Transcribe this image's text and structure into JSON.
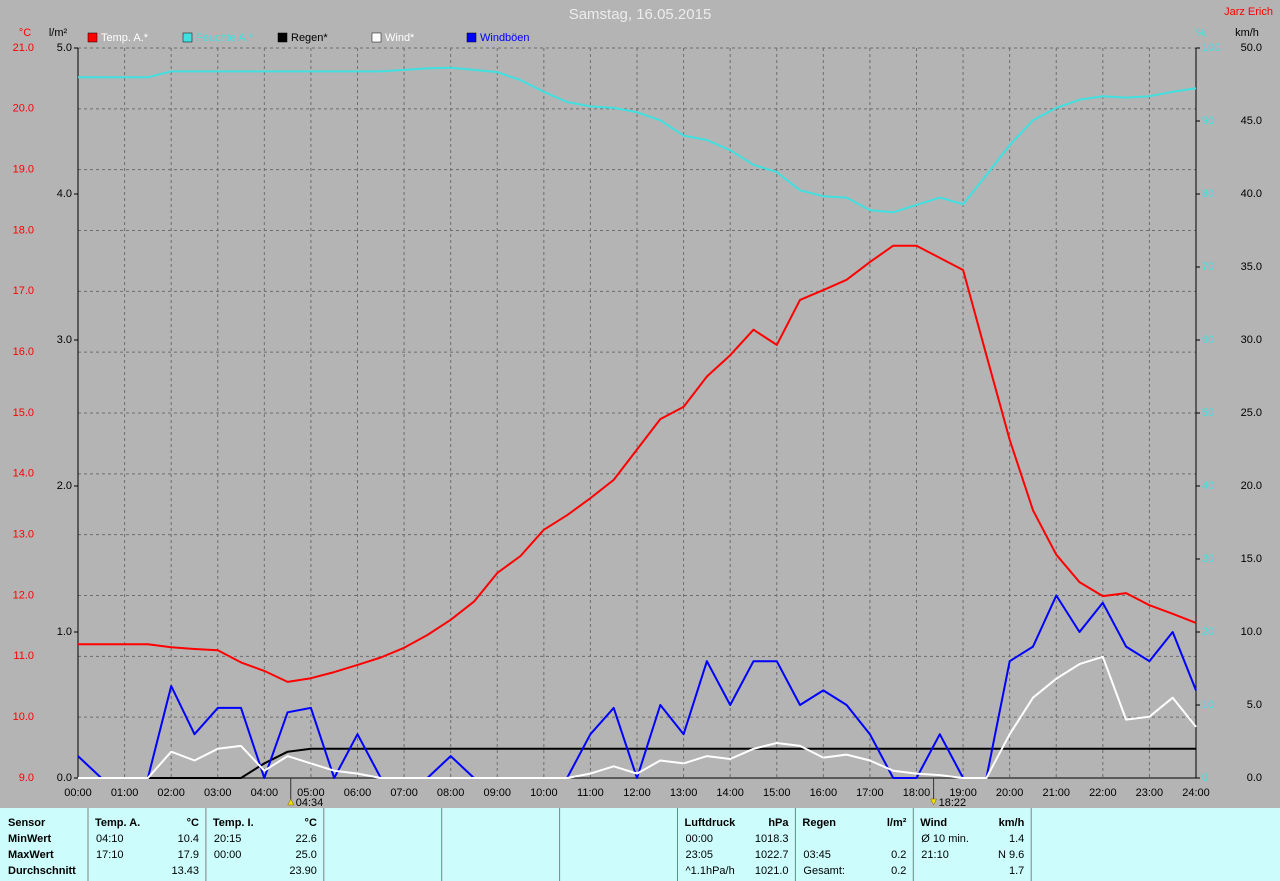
{
  "chart_data": {
    "type": "line",
    "title": "Samstag, 16.05.2015",
    "author": "Jarz Erich",
    "ylabel": "°C",
    "y2label": "l/m²",
    "y3label": "%",
    "y4label": "km/h",
    "x": [
      0,
      0.5,
      1,
      1.5,
      2,
      2.5,
      3,
      3.5,
      4,
      4.5,
      5,
      5.5,
      6,
      6.5,
      7,
      7.5,
      8,
      8.5,
      9,
      9.5,
      10,
      10.5,
      11,
      11.5,
      12,
      12.5,
      13,
      13.5,
      14,
      14.5,
      15,
      15.5,
      16,
      16.5,
      17,
      17.5,
      18,
      18.5,
      19,
      19.5,
      20,
      20.5,
      21,
      21.5,
      22,
      22.5,
      23,
      23.5,
      24
    ],
    "xlim": [
      0,
      24
    ],
    "xticks": [
      {
        "value": 0,
        "label": "00:00"
      },
      {
        "value": 1,
        "label": "01:00"
      },
      {
        "value": 2,
        "label": "02:00"
      },
      {
        "value": 3,
        "label": "03:00"
      },
      {
        "value": 4,
        "label": "04:00"
      },
      {
        "value": 5,
        "label": "05:00"
      },
      {
        "value": 6,
        "label": "06:00"
      },
      {
        "value": 7,
        "label": "07:00"
      },
      {
        "value": 8,
        "label": "08:00"
      },
      {
        "value": 9,
        "label": "09:00"
      },
      {
        "value": 10,
        "label": "10:00"
      },
      {
        "value": 11,
        "label": "11:00"
      },
      {
        "value": 12,
        "label": "12:00"
      },
      {
        "value": 13,
        "label": "13:00"
      },
      {
        "value": 14,
        "label": "14:00"
      },
      {
        "value": 15,
        "label": "15:00"
      },
      {
        "value": 16,
        "label": "16:00"
      },
      {
        "value": 17,
        "label": "17:00"
      },
      {
        "value": 18,
        "label": "18:00"
      },
      {
        "value": 19,
        "label": "19:00"
      },
      {
        "value": 20,
        "label": "20:00"
      },
      {
        "value": 21,
        "label": "21:00"
      },
      {
        "value": 22,
        "label": "22:00"
      },
      {
        "value": 23,
        "label": "23:00"
      },
      {
        "value": 24,
        "label": "24:00"
      }
    ],
    "ylim": [
      9,
      21
    ],
    "yticks": [
      {
        "value": 9,
        "label": "9.0"
      },
      {
        "value": 10,
        "label": "10.0"
      },
      {
        "value": 11,
        "label": "11.0"
      },
      {
        "value": 12,
        "label": "12.0"
      },
      {
        "value": 13,
        "label": "13.0"
      },
      {
        "value": 14,
        "label": "14.0"
      },
      {
        "value": 15,
        "label": "15.0"
      },
      {
        "value": 16,
        "label": "16.0"
      },
      {
        "value": 17,
        "label": "17.0"
      },
      {
        "value": 18,
        "label": "18.0"
      },
      {
        "value": 19,
        "label": "19.0"
      },
      {
        "value": 20,
        "label": "20.0"
      },
      {
        "value": 21,
        "label": "21.0"
      }
    ],
    "y2lim": [
      0,
      5
    ],
    "y2ticks": [
      {
        "value": 0,
        "label": "0.0"
      },
      {
        "value": 1,
        "label": "1.0"
      },
      {
        "value": 2,
        "label": "2.0"
      },
      {
        "value": 3,
        "label": "3.0"
      },
      {
        "value": 4,
        "label": "4.0"
      },
      {
        "value": 5,
        "label": "5.0"
      }
    ],
    "y3lim": [
      0,
      100
    ],
    "y3ticks": [
      0,
      10,
      20,
      30,
      40,
      50,
      60,
      70,
      80,
      90,
      100
    ],
    "y4lim": [
      0,
      50
    ],
    "y4ticks": [
      {
        "value": 0,
        "label": "0.0"
      },
      {
        "value": 5,
        "label": "5.0"
      },
      {
        "value": 10,
        "label": "10.0"
      },
      {
        "value": 15,
        "label": "15.0"
      },
      {
        "value": 20,
        "label": "20.0"
      },
      {
        "value": 25,
        "label": "25.0"
      },
      {
        "value": 30,
        "label": "30.0"
      },
      {
        "value": 35,
        "label": "35.0"
      },
      {
        "value": 40,
        "label": "40.0"
      },
      {
        "value": 45,
        "label": "45.0"
      },
      {
        "value": 50,
        "label": "50.0"
      }
    ],
    "grid": true,
    "series": [
      {
        "name": "Temp. A.*",
        "color": "#ff0000",
        "axis": "y",
        "values": [
          11.2,
          11.2,
          11.2,
          11.2,
          11.15,
          11.12,
          11.1,
          10.9,
          10.76,
          10.58,
          10.64,
          10.74,
          10.86,
          10.98,
          11.14,
          11.35,
          11.6,
          11.9,
          12.37,
          12.65,
          13.08,
          13.32,
          13.6,
          13.9,
          14.4,
          14.9,
          15.1,
          15.6,
          15.95,
          16.37,
          16.12,
          16.86,
          17.02,
          17.19,
          17.48,
          17.75,
          17.75,
          17.55,
          17.35,
          15.95,
          14.56,
          13.4,
          12.67,
          12.22,
          11.99,
          12.04,
          11.84,
          11.7,
          11.55
        ]
      },
      {
        "name": "Feuchte A.*",
        "color": "#40e0e0",
        "axis": "y3",
        "values": [
          96,
          96,
          96,
          96,
          96.8,
          96.8,
          96.8,
          96.8,
          96.8,
          96.8,
          96.8,
          96.8,
          96.8,
          96.8,
          97,
          97.2,
          97.3,
          97,
          96.7,
          95.6,
          94,
          92.6,
          92,
          91.8,
          91.2,
          90.1,
          88,
          87.4,
          86,
          84,
          83,
          80.5,
          79.7,
          79.5,
          77.8,
          77.5,
          78.5,
          79.5,
          78.6,
          82.6,
          86.7,
          90.1,
          91.8,
          92.9,
          93.4,
          93.2,
          93.4,
          94,
          94.5
        ]
      },
      {
        "name": "Regen*",
        "color": "#000000",
        "axis": "y2",
        "values": [
          0,
          0,
          0,
          0,
          0,
          0,
          0,
          0,
          0.1,
          0.18,
          0.2,
          0.2,
          0.2,
          0.2,
          0.2,
          0.2,
          0.2,
          0.2,
          0.2,
          0.2,
          0.2,
          0.2,
          0.2,
          0.2,
          0.2,
          0.2,
          0.2,
          0.2,
          0.2,
          0.2,
          0.2,
          0.2,
          0.2,
          0.2,
          0.2,
          0.2,
          0.2,
          0.2,
          0.2,
          0.2,
          0.2,
          0.2,
          0.2,
          0.2,
          0.2,
          0.2,
          0.2,
          0.2,
          0.2
        ]
      },
      {
        "name": "Wind*",
        "color": "#ffffff",
        "axis": "y4",
        "values": [
          0,
          0,
          0,
          0,
          1.8,
          1.2,
          2,
          2.2,
          0.5,
          1.5,
          1,
          0.5,
          0.3,
          0,
          0,
          0,
          0,
          0,
          0,
          0,
          0,
          0,
          0.3,
          0.8,
          0.3,
          1.2,
          1,
          1.5,
          1.3,
          2,
          2.4,
          2.2,
          1.4,
          1.6,
          1.2,
          0.5,
          0.3,
          0.2,
          0,
          0,
          3,
          5.5,
          6.8,
          7.8,
          8.3,
          4,
          4.2,
          5.5,
          3.5
        ]
      },
      {
        "name": "Windböen",
        "color": "#0000ff",
        "axis": "y4",
        "values": [
          1.5,
          0,
          0,
          0,
          6.3,
          3,
          4.8,
          4.8,
          0,
          4.5,
          4.8,
          0,
          3,
          0,
          0,
          0,
          1.5,
          0,
          0,
          0,
          0,
          0,
          3,
          4.8,
          0,
          5,
          3,
          8,
          5,
          8,
          8,
          5,
          6,
          5,
          3,
          0,
          0,
          3,
          0,
          0,
          8,
          9,
          12.5,
          10,
          12,
          9,
          8,
          10,
          6
        ]
      }
    ],
    "annotations": [
      {
        "label": "04:34",
        "x": 4.567,
        "direction": "up"
      },
      {
        "label": "18:22",
        "x": 18.367,
        "direction": "down"
      }
    ]
  },
  "table": {
    "sensor": {
      "title": "Sensor",
      "rows": [
        "MinWert",
        "MaxWert",
        "Durchschnitt"
      ]
    },
    "groups": [
      {
        "title": "Temp. A.",
        "unit": "°C",
        "rows": [
          {
            "label": "04:10",
            "value": "10.4"
          },
          {
            "label": "17:10",
            "value": "17.9"
          },
          {
            "value": "13.43"
          }
        ]
      },
      {
        "title": "Temp. I.",
        "unit": "°C",
        "rows": [
          {
            "label": "20:15",
            "value": "22.6"
          },
          {
            "label": "00:00",
            "value": "25.0"
          },
          {
            "value": "23.90"
          }
        ]
      },
      {
        "title": "Luftdruck",
        "unit": "hPa",
        "rows": [
          {
            "label": "00:00",
            "value": "1018.3"
          },
          {
            "label": "23:05",
            "value": "1022.7"
          },
          {
            "label": "^1.1hPa/h",
            "value": "1021.0"
          }
        ]
      },
      {
        "title": "Regen",
        "unit": "l/m²",
        "rows": [
          null,
          {
            "label": "03:45",
            "value": "0.2"
          },
          {
            "label": "Gesamt:",
            "value": "0.2"
          }
        ]
      },
      {
        "title": "Wind",
        "unit": "km/h",
        "rows": [
          {
            "label": "Ø 10 min.",
            "value": "1.4"
          },
          {
            "label": "21:10",
            "value": "N 9.6"
          },
          {
            "value": "1.7"
          }
        ]
      }
    ]
  }
}
